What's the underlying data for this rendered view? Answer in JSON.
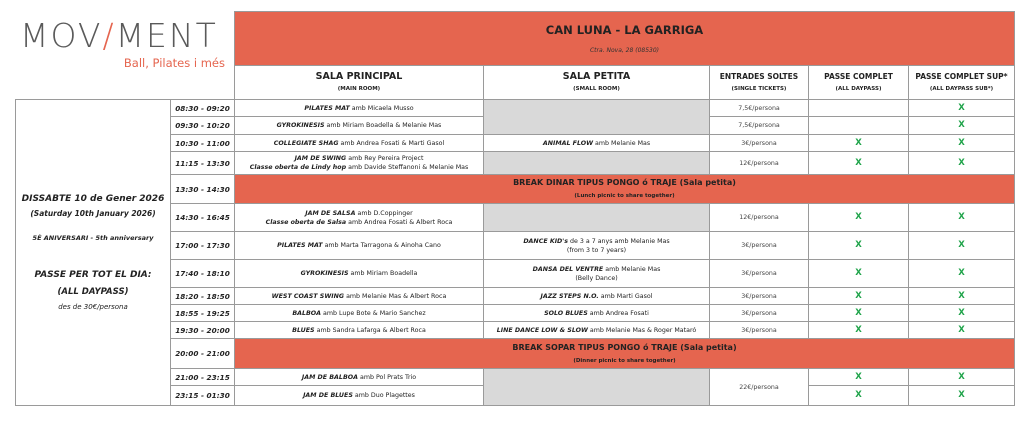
{
  "logo": {
    "text_a": "MOV",
    "slash": "/",
    "text_b": "MENT",
    "tagline": "Ball, Pilates i més"
  },
  "header": {
    "venue": "CAN LUNA - LA GARRIGA",
    "address": "Ctra. Nova, 28 (08530)",
    "columns": [
      {
        "title": "SALA PRINCIPAL",
        "sub": "(MAIN ROOM)"
      },
      {
        "title": "SALA PETITA",
        "sub": "(SMALL ROOM)"
      },
      {
        "title": "ENTRADES SOLTES",
        "sub": "(SINGLE TICKETS)"
      },
      {
        "title": "PASSE COMPLET",
        "sub": "(ALL DAYPASS)"
      },
      {
        "title": "PASSE COMPLET SUP*",
        "sub": "(ALL DAYPASS SUB*)"
      }
    ]
  },
  "day": {
    "date": "DISSABTE 10 de Gener 2026",
    "date_en": "(Saturday 10th January 2026)",
    "anniversary": "5È ANIVERSARI - 5th anniversary",
    "pass_title": "PASSE PER TOT EL DIA:",
    "pass_sub": "(ALL DAYPASS)",
    "pass_price": "des de  30€/persona"
  },
  "check_mark": "X",
  "colors": {
    "accent": "#e5654f",
    "check": "#1fa34a",
    "empty_cell": "#d9d9d9"
  },
  "rows": [
    {
      "time": "08:30 - 09:20",
      "principal": [
        {
          "bold": "PILATES MAT",
          "rest": " amb Micaela Musso"
        }
      ],
      "petita": "gray2",
      "price": "7,5€/persona",
      "passe": false,
      "sup": true
    },
    {
      "time": "09:30 - 10:20",
      "principal": [
        {
          "bold": "GYROKINESIS",
          "rest": "  amb Miriam Boadella & Melanie Mas"
        }
      ],
      "petita": "skip",
      "price": "7,5€/persona",
      "passe": false,
      "sup": true
    },
    {
      "time": "10:30 - 11:00",
      "principal": [
        {
          "bold": "COLLEGIATE SHAG",
          "rest": "  amb Andrea Fosati & Marti Gasol"
        }
      ],
      "petita": [
        {
          "bold": "ANIMAL FLOW",
          "rest": "  amb Melanie Mas"
        }
      ],
      "price": "3€/persona",
      "passe": true,
      "sup": true
    },
    {
      "time": "11:15 - 13:30",
      "principal": [
        {
          "bold": "JAM DE SWING",
          "rest": "  amb Rey Pereira Project"
        },
        {
          "bold": "Classe oberta de Lindy hop",
          "rest": "  amb Davide Steffanoni & Melanie Mas"
        }
      ],
      "petita": "gray1",
      "price": "12€/persona",
      "passe": true,
      "sup": true
    },
    {
      "time": "13:30 - 14:30",
      "break": "BREAK DINAR TIPUS PONGO ó TRAJE (Sala petita)",
      "break_sub": "(Lunch picnic to share together)"
    },
    {
      "time": "14:30 - 16:45",
      "principal": [
        {
          "bold": "JAM DE SALSA",
          "rest": " amb D.Coppinger"
        },
        {
          "bold": "Classe oberta de Salsa",
          "rest": "  amb Andrea Fosati & Albert Roca"
        }
      ],
      "petita": "gray1",
      "price": "12€/persona",
      "passe": true,
      "sup": true
    },
    {
      "time": "17:00 - 17:30",
      "principal": [
        {
          "bold": "PILATES MAT",
          "rest": "  amb Marta Tarragona & Ainoha Cano"
        }
      ],
      "petita": [
        {
          "bold": "DANCE KID's",
          "rest": "  de 3 a 7 anys amb Melanie Mas"
        },
        {
          "bold": "",
          "rest": "(from 3 to 7 years)"
        }
      ],
      "price": "3€/persona",
      "passe": true,
      "sup": true
    },
    {
      "time": "17:40 - 18:10",
      "principal": [
        {
          "bold": "GYROKINESIS",
          "rest": "  amb Miriam Boadella"
        }
      ],
      "petita": [
        {
          "bold": "DANSA DEL VENTRE",
          "rest": "  amb Melanie Mas"
        },
        {
          "bold": "",
          "rest": "(Belly Dance)"
        }
      ],
      "price": "3€/persona",
      "passe": true,
      "sup": true
    },
    {
      "time": "18:20 - 18:50",
      "principal": [
        {
          "bold": "WEST COAST SWING",
          "rest": "  amb Melanie Mas & Albert Roca"
        }
      ],
      "petita": [
        {
          "bold": "JAZZ STEPS N.O.",
          "rest": "  amb Marti Gasol"
        }
      ],
      "price": "3€/persona",
      "passe": true,
      "sup": true
    },
    {
      "time": "18:55 - 19:25",
      "principal": [
        {
          "bold": "BALBOA",
          "rest": "  amb Lupe Bote & Mario Sanchez"
        }
      ],
      "petita": [
        {
          "bold": "SOLO BLUES",
          "rest": " amb Andrea Fosati"
        }
      ],
      "price": "3€/persona",
      "passe": true,
      "sup": true
    },
    {
      "time": "19:30 - 20:00",
      "principal": [
        {
          "bold": "BLUES",
          "rest": "  amb Sandra Lafarga & Albert Roca"
        }
      ],
      "petita": [
        {
          "bold": "LINE DANCE LOW & SLOW",
          "rest": "  amb Melanie Mas & Roger Mataró"
        }
      ],
      "price": "3€/persona",
      "passe": true,
      "sup": true
    },
    {
      "time": "20:00 - 21:00",
      "break": "BREAK SOPAR TIPUS PONGO ó TRAJE (Sala petita)",
      "break_sub": "(Dinner picnic to share together)"
    },
    {
      "time": "21:00 - 23:15",
      "principal": [
        {
          "bold": "JAM DE BALBOA",
          "rest": " amb Pol Prats Trio"
        }
      ],
      "petita": "gray2",
      "price": "22€/persona",
      "price_span": 2,
      "passe": true,
      "sup": true
    },
    {
      "time": "23:15 - 01:30",
      "principal": [
        {
          "bold": "JAM DE BLUES",
          "rest": " amb Duo Plagettes"
        }
      ],
      "petita": "skip",
      "price": "skip",
      "passe": true,
      "sup": true
    }
  ]
}
